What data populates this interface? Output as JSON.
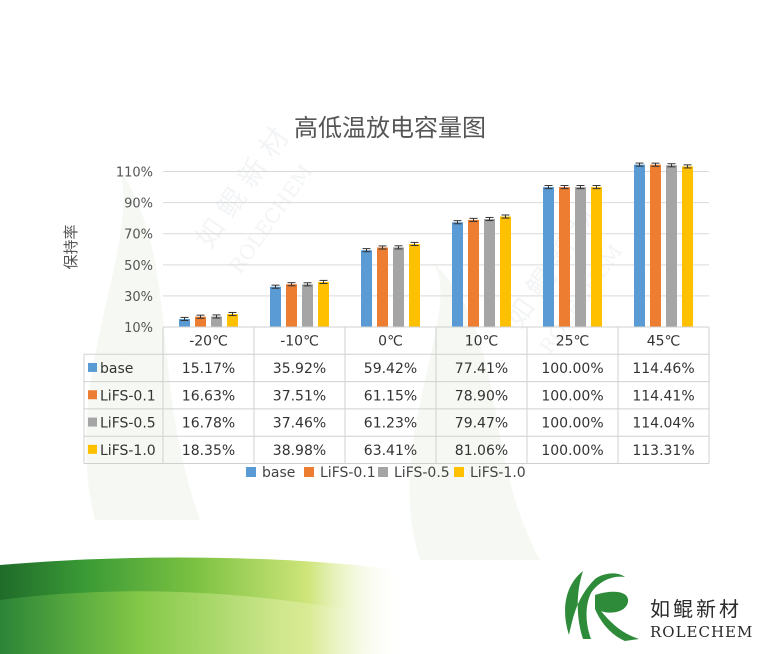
{
  "chart_data": {
    "type": "bar",
    "title": "高低温放电容量图",
    "xlabel": "",
    "ylabel": "保持率",
    "ylim": [
      10,
      120
    ],
    "yticks": [
      10,
      30,
      50,
      70,
      90,
      110
    ],
    "ytick_labels": [
      "10%",
      "30%",
      "50%",
      "70%",
      "90%",
      "110%"
    ],
    "categories": [
      "-20℃",
      "-10℃",
      "0℃",
      "10℃",
      "25℃",
      "45℃"
    ],
    "series": [
      {
        "name": "base",
        "color": "#5b9bd5",
        "values": [
          15.17,
          35.92,
          59.42,
          77.41,
          100.0,
          114.46
        ],
        "labels": [
          "15.17%",
          "35.92%",
          "59.42%",
          "77.41%",
          "100.00%",
          "114.46%"
        ]
      },
      {
        "name": "LiFS-0.1",
        "color": "#ed7d31",
        "values": [
          16.63,
          37.51,
          61.15,
          78.9,
          100.0,
          114.41
        ],
        "labels": [
          "16.63%",
          "37.51%",
          "61.15%",
          "78.90%",
          "100.00%",
          "114.41%"
        ]
      },
      {
        "name": "LiFS-0.5",
        "color": "#a5a5a5",
        "values": [
          16.78,
          37.46,
          61.23,
          79.47,
          100.0,
          114.04
        ],
        "labels": [
          "16.78%",
          "37.46%",
          "61.23%",
          "79.47%",
          "100.00%",
          "114.04%"
        ]
      },
      {
        "name": "LiFS-1.0",
        "color": "#ffc000",
        "values": [
          18.35,
          38.98,
          63.41,
          81.06,
          100.0,
          113.31
        ],
        "labels": [
          "18.35%",
          "38.98%",
          "63.41%",
          "81.06%",
          "100.00%",
          "113.31%"
        ]
      }
    ],
    "error_bars": true,
    "grid": true,
    "data_table": true,
    "legend": "bottom"
  },
  "watermark": {
    "cn": "如 鲲 新 材",
    "en": "ROLECHEM"
  },
  "logo": {
    "cn": "如鲲新材",
    "en": "ROLECHEM",
    "color": "#2e8b3a"
  },
  "footer_colors": [
    "#d6e87a",
    "#7cc242",
    "#2e8b3a",
    "#1f6b2a"
  ]
}
